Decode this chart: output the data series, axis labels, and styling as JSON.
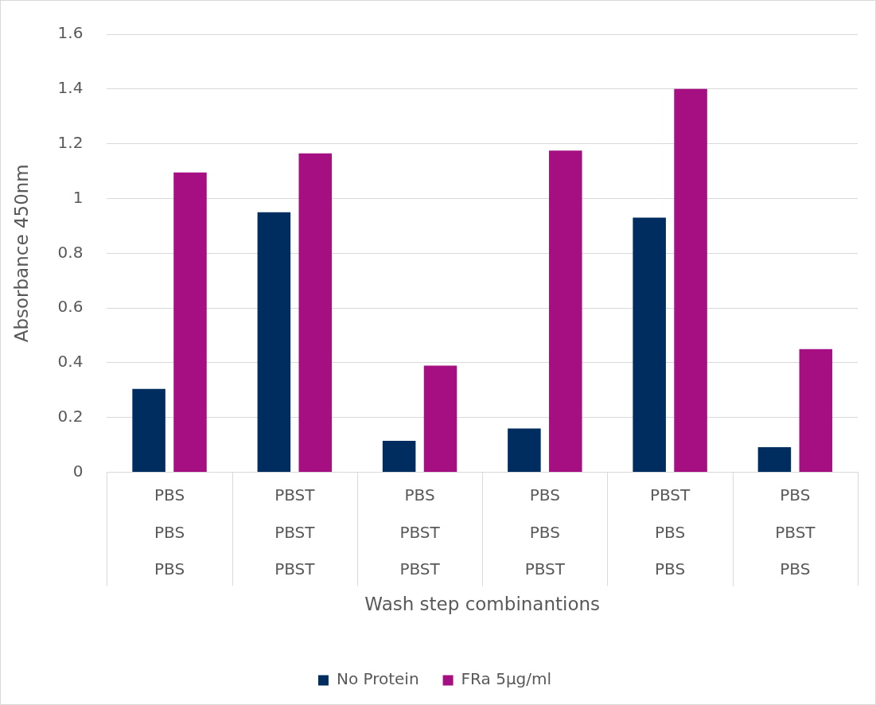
{
  "chart_data": {
    "type": "bar",
    "xlabel": "Wash step combinantions",
    "ylabel": "Absorbance 450nm",
    "categories": [
      "PBS\nPBS\nPBS",
      "PBST\nPBST\nPBST",
      "PBS\nPBST\nPBST",
      "PBS\nPBS\nPBST",
      "PBST\nPBS\nPBS",
      "PBS\nPBST\nPBS"
    ],
    "series": [
      {
        "name": "No Protein",
        "color": "#002d5f",
        "values": [
          0.305,
          0.95,
          0.115,
          0.16,
          0.93,
          0.092
        ]
      },
      {
        "name": "FRa 5µg/ml",
        "color": "#a50f82",
        "values": [
          1.095,
          1.165,
          0.39,
          1.175,
          1.4,
          0.45
        ]
      }
    ],
    "ylim": [
      0,
      1.6
    ],
    "yticks": [
      0,
      0.2,
      0.4,
      0.6,
      0.8,
      1,
      1.2,
      1.4,
      1.6
    ],
    "grid": "y",
    "legend": "bottom"
  }
}
